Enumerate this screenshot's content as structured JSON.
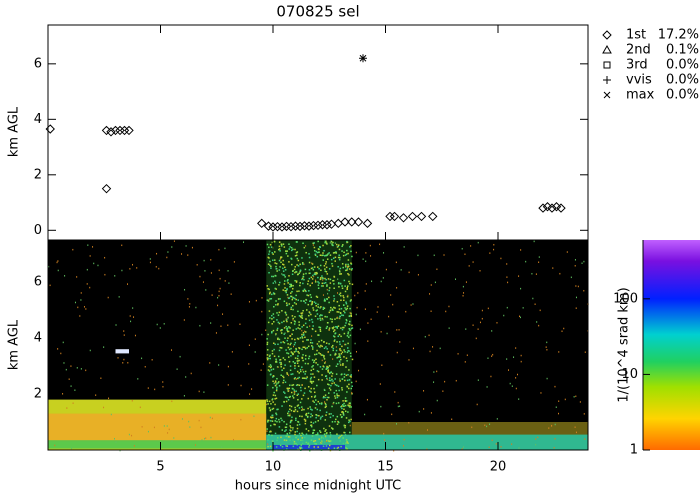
{
  "chart_data": [
    {
      "type": "scatter",
      "title": "070825 sel",
      "y_label": "km AGL",
      "xlim": [
        0,
        24
      ],
      "ylim": [
        -0.35,
        7.4
      ],
      "xticks": [
        5,
        10,
        15,
        20
      ],
      "yticks": [
        0,
        2,
        4,
        6
      ],
      "series": [
        {
          "name": "1st",
          "marker": "diamond",
          "share": "17.2%",
          "x": [
            0.1,
            2.6,
            2.6,
            2.8,
            3.0,
            3.2,
            3.4,
            3.6,
            9.5,
            9.8,
            10.0,
            10.2,
            10.4,
            10.6,
            10.8,
            11.0,
            11.2,
            11.4,
            11.6,
            11.8,
            12.0,
            12.2,
            12.4,
            12.6,
            12.9,
            13.2,
            13.5,
            13.8,
            14.2,
            15.2,
            15.4,
            15.8,
            16.2,
            16.6,
            17.1,
            22.0,
            22.2,
            22.4,
            22.6,
            22.8
          ],
          "values": [
            3.65,
            1.5,
            3.6,
            3.55,
            3.6,
            3.6,
            3.6,
            3.6,
            0.25,
            0.15,
            0.12,
            0.13,
            0.12,
            0.14,
            0.13,
            0.15,
            0.14,
            0.16,
            0.15,
            0.17,
            0.18,
            0.2,
            0.2,
            0.22,
            0.25,
            0.3,
            0.3,
            0.3,
            0.25,
            0.5,
            0.5,
            0.45,
            0.5,
            0.5,
            0.5,
            0.8,
            0.85,
            0.8,
            0.85,
            0.8
          ]
        },
        {
          "name": "2nd",
          "marker": "triangle",
          "share": "0.1%",
          "x": [],
          "values": []
        },
        {
          "name": "3rd",
          "marker": "square",
          "share": "0.0%",
          "x": [],
          "values": []
        },
        {
          "name": "vvis",
          "marker": "plus",
          "share": "0.0%",
          "x": [],
          "values": []
        },
        {
          "name": "max",
          "marker": "cross",
          "share": "0.0%",
          "x": [
            14.0
          ],
          "values": [
            6.2
          ]
        }
      ]
    },
    {
      "type": "heatmap",
      "x_label": "hours since midnight UTC",
      "y_label": "km AGL",
      "xlim": [
        0,
        24
      ],
      "ylim": [
        0,
        7.5
      ],
      "xticks": [
        5,
        10,
        15,
        20
      ],
      "yticks": [
        2,
        4,
        6
      ],
      "colorbar": {
        "label": "1/(10^4 srad km)",
        "log": true,
        "lim": [
          1,
          600
        ],
        "ticks": [
          1,
          10,
          100
        ]
      }
    }
  ]
}
